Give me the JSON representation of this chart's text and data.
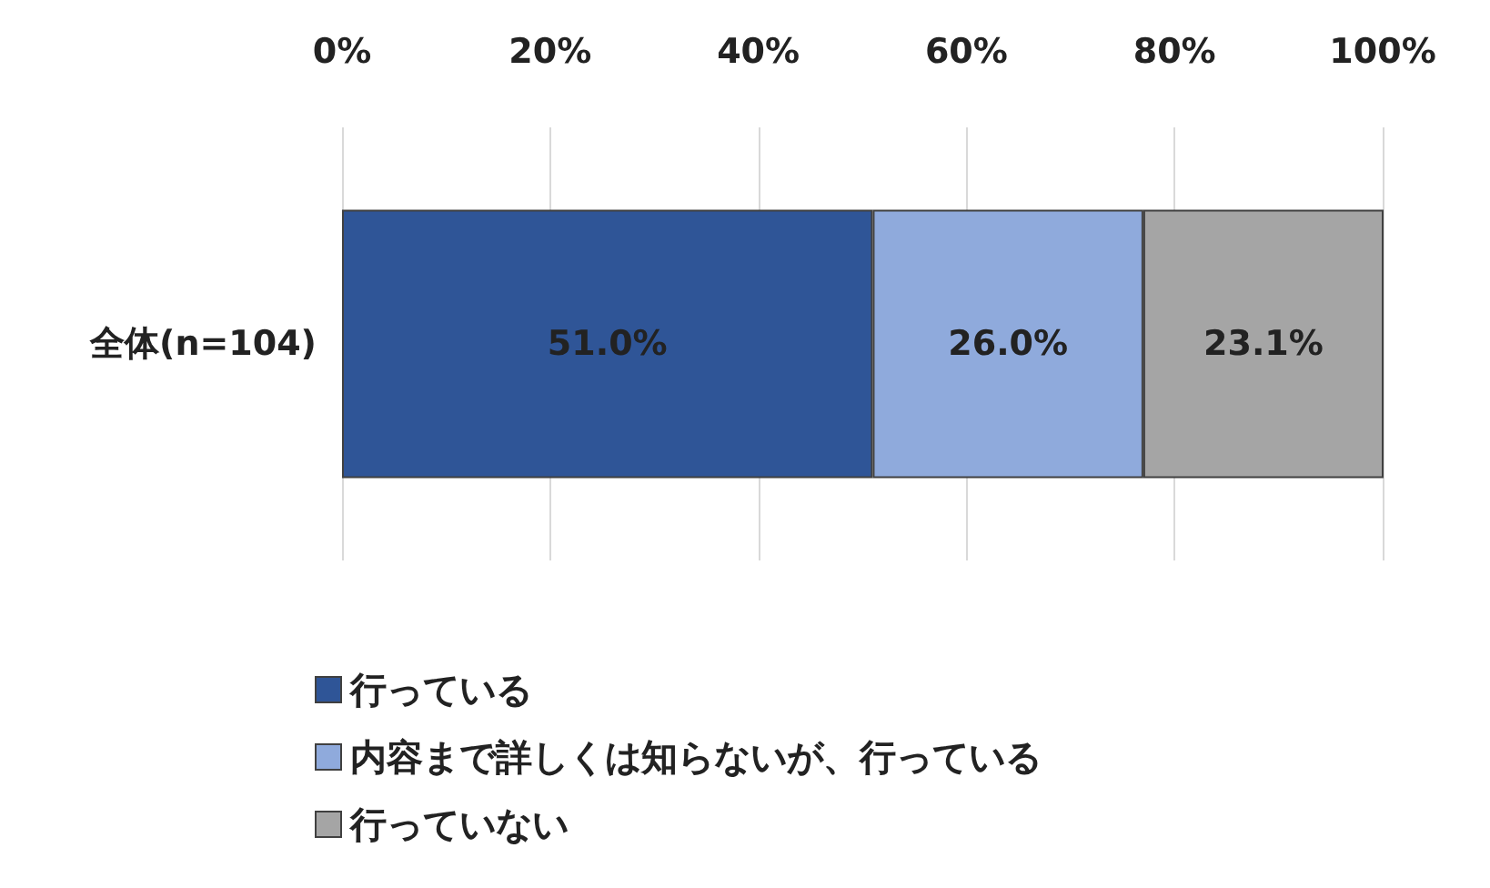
{
  "chart_data": {
    "type": "bar",
    "orientation": "horizontal",
    "stacked": true,
    "categories": [
      "全体(n=104)"
    ],
    "series": [
      {
        "name": "行っている",
        "color": "#2f5597",
        "values": [
          51.0
        ],
        "value_labels": [
          "51.0%"
        ]
      },
      {
        "name": "内容まで詳しくは知らないが、行っている",
        "color": "#8faadc",
        "values": [
          26.0
        ],
        "value_labels": [
          "26.0%"
        ]
      },
      {
        "name": "行っていない",
        "color": "#a5a5a5",
        "values": [
          23.1
        ],
        "value_labels": [
          "23.1%"
        ]
      }
    ],
    "xlim": [
      0,
      100
    ],
    "xticks": [
      {
        "value": 0,
        "label": "0%"
      },
      {
        "value": 20,
        "label": "20%"
      },
      {
        "value": 40,
        "label": "40%"
      },
      {
        "value": 60,
        "label": "60%"
      },
      {
        "value": 80,
        "label": "80%"
      },
      {
        "value": 100,
        "label": "100%"
      }
    ],
    "grid": "x",
    "legend": "bottom left"
  }
}
